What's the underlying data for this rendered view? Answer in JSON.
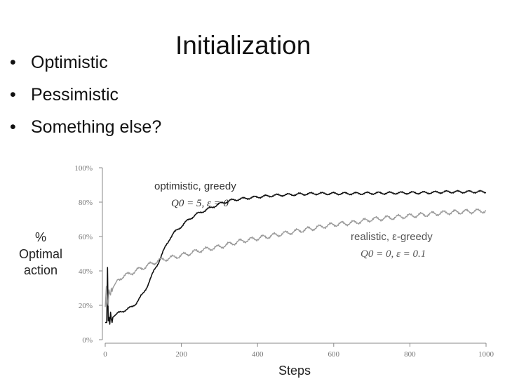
{
  "slide": {
    "title": "Initialization",
    "bullets": [
      "Optimistic",
      "Pessimistic",
      "Something else?"
    ],
    "bullet_symbol": "•"
  },
  "chart_data": {
    "type": "line",
    "xlabel": "Steps",
    "ylabel_lines": [
      "%",
      "Optimal",
      "action"
    ],
    "xlim": [
      0,
      1000
    ],
    "ylim": [
      0,
      100
    ],
    "x_ticks": [
      "0",
      "200",
      "400",
      "600",
      "800",
      "1000"
    ],
    "y_ticks": [
      "0%",
      "20%",
      "40%",
      "60%",
      "80%",
      "100%"
    ],
    "grid": false,
    "series": [
      {
        "color": "#111111",
        "x": [
          0,
          4,
          6,
          8,
          10,
          12,
          14,
          16,
          18,
          20,
          25,
          30,
          40,
          50,
          60,
          70,
          80,
          90,
          100,
          110,
          120,
          130,
          140,
          150,
          160,
          170,
          180,
          190,
          200,
          220,
          240,
          260,
          280,
          300,
          330,
          360,
          400,
          450,
          500,
          550,
          600,
          650,
          700,
          750,
          800,
          850,
          900,
          950,
          1000
        ],
        "y": [
          10,
          10,
          42,
          11,
          13,
          9,
          16,
          12,
          10,
          13,
          14,
          15,
          16,
          17,
          18,
          19,
          21,
          24,
          27,
          31,
          36,
          41,
          45,
          50,
          55,
          59,
          62,
          64,
          66,
          70,
          73,
          75,
          77,
          79,
          81,
          82,
          83,
          84,
          84.5,
          85,
          85,
          85,
          85.2,
          85.3,
          85.4,
          85.5,
          86,
          86,
          86
        ]
      },
      {
        "color": "#999999",
        "x": [
          0,
          3,
          6,
          8,
          10,
          12,
          14,
          16,
          18,
          20,
          25,
          30,
          40,
          50,
          60,
          70,
          80,
          100,
          120,
          140,
          160,
          180,
          200,
          250,
          300,
          350,
          400,
          450,
          500,
          550,
          600,
          650,
          700,
          750,
          800,
          850,
          900,
          950,
          1000
        ],
        "y": [
          19,
          31,
          22,
          20,
          29,
          27,
          26,
          30,
          28,
          30,
          32,
          34,
          36,
          37,
          38,
          39,
          40,
          42,
          44,
          46,
          47,
          48,
          49,
          52,
          54,
          57,
          59,
          61,
          63,
          65,
          67,
          68,
          70,
          71,
          72,
          73,
          74,
          74.5,
          75
        ]
      }
    ],
    "annotations": [
      {
        "text": "optimistic, greedy",
        "sub_text": "Q0 = 5, ε = 0"
      },
      {
        "text": "realistic, ε-greedy",
        "sub_text": "Q0 = 0, ε = 0.1"
      }
    ]
  }
}
